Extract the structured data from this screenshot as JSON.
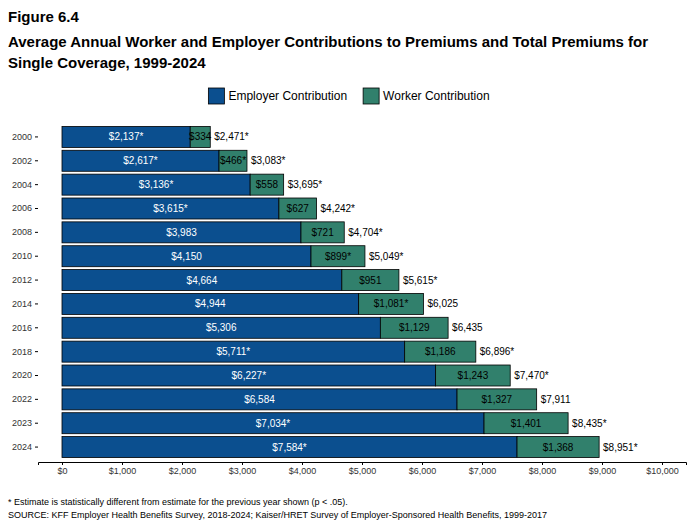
{
  "chart_data": {
    "type": "bar",
    "orientation": "horizontal",
    "stacked": true,
    "data_labels": true,
    "legend": "top",
    "grid": false,
    "title": "Figure 6.4",
    "subtitle": "Average Annual Worker and Employer Contributions to Premiums and Total Premiums for Single Coverage, 1999-2024",
    "categories": [
      "2000",
      "2002",
      "2004",
      "2006",
      "2008",
      "2010",
      "2012",
      "2014",
      "2016",
      "2018",
      "2020",
      "2022",
      "2023",
      "2024"
    ],
    "series": [
      {
        "name": "Employer Contribution",
        "color": "#0b4f8f",
        "values": [
          2137,
          2617,
          3136,
          3615,
          3983,
          4150,
          4664,
          4944,
          5306,
          5711,
          6227,
          6584,
          7034,
          7584
        ],
        "value_labels": [
          "$2,137*",
          "$2,617*",
          "$3,136*",
          "$3,615*",
          "$3,983",
          "$4,150",
          "$4,664",
          "$4,944",
          "$5,306",
          "$5,711*",
          "$6,227*",
          "$6,584",
          "$7,034*",
          "$7,584*"
        ]
      },
      {
        "name": "Worker Contribution",
        "color": "#31806c",
        "values": [
          334,
          466,
          558,
          627,
          721,
          899,
          951,
          1081,
          1129,
          1186,
          1243,
          1327,
          1401,
          1368
        ],
        "value_labels": [
          "$334",
          "$466*",
          "$558",
          "$627",
          "$721",
          "$899*",
          "$951",
          "$1,081*",
          "$1,129",
          "$1,186",
          "$1,243",
          "$1,327",
          "$1,401",
          "$1,368"
        ]
      }
    ],
    "totals": [
      2471,
      3083,
      3695,
      4242,
      4704,
      5049,
      5615,
      6025,
      6435,
      6896,
      7470,
      7911,
      8435,
      8951
    ],
    "total_labels": [
      "$2,471*",
      "$3,083*",
      "$3,695*",
      "$4,242*",
      "$4,704*",
      "$5,049*",
      "$5,615*",
      "$6,025",
      "$6,435",
      "$6,896*",
      "$7,470*",
      "$7,911",
      "$8,435*",
      "$8,951*"
    ],
    "xlim": [
      -400,
      10400
    ],
    "xticks": [
      {
        "value": 0,
        "label": "$0"
      },
      {
        "value": 1000,
        "label": "$1,000"
      },
      {
        "value": 2000,
        "label": "$2,000"
      },
      {
        "value": 3000,
        "label": "$3,000"
      },
      {
        "value": 4000,
        "label": "$4,000"
      },
      {
        "value": 5000,
        "label": "$5,000"
      },
      {
        "value": 6000,
        "label": "$6,000"
      },
      {
        "value": 7000,
        "label": "$7,000"
      },
      {
        "value": 8000,
        "label": "$8,000"
      },
      {
        "value": 9000,
        "label": "$9,000"
      },
      {
        "value": 10000,
        "label": "$10,000"
      }
    ],
    "notes": [
      "* Estimate is statistically different from estimate for the previous year shown (p < .05).",
      "SOURCE: KFF Employer Health Benefits Survey, 2018-2024; Kaiser/HRET Survey of Employer-Sponsored Health Benefits, 1999-2017"
    ]
  }
}
